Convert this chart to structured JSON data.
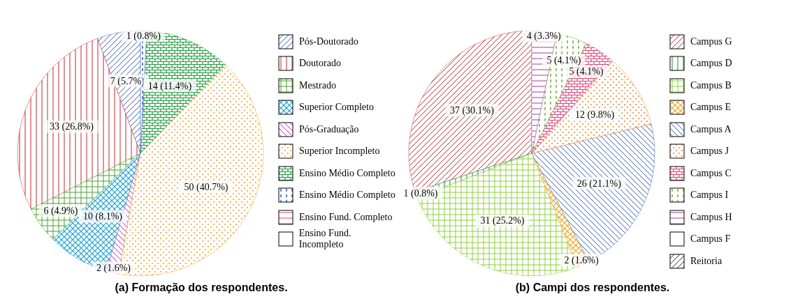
{
  "chart_data": [
    {
      "type": "pie",
      "title": "(a) Formação dos respondentes.",
      "categories": [
        "Pós-Doutorado",
        "Doutorado",
        "Mestrado",
        "Superior Completo",
        "Pós-Graduação",
        "Superior Incompleto",
        "Ensino Médio Completo",
        "Ensino Médio Completo",
        "Ensino Fund. Completo",
        "Ensino Fund. Incompleto"
      ],
      "values": [
        7,
        33,
        6,
        10,
        2,
        50,
        14,
        1,
        0,
        0
      ],
      "colors": [
        "#3c5fb0",
        "#c0282d",
        "#4aa02c",
        "#1a9fd0",
        "#b02cb0",
        "#f39c1a",
        "#1e9a3a",
        "#2a4fc0",
        "#e0457a",
        "#000000"
      ],
      "value_labels": [
        "7 (5.7%)",
        "33 (26.8%)",
        "6 (4.9%)",
        "10 (8.1%)",
        "2 (1.6%)",
        "50 (40.7%)",
        "14 (11.4%)",
        "1 (0.8%)",
        null,
        null
      ],
      "legend": "right"
    },
    {
      "type": "pie",
      "title": "(b) Campi dos respondentes.",
      "categories": [
        "Campus G",
        "Campus D",
        "Campus B",
        "Campus E",
        "Campus A",
        "Campus J",
        "Campus C",
        "Campus I",
        "Campus H",
        "Campus F",
        "Reitoria"
      ],
      "values": [
        37,
        1,
        31,
        2,
        26,
        12,
        5,
        5,
        4,
        0,
        0
      ],
      "colors": [
        "#c0282d",
        "#1a8a2a",
        "#8fcf3a",
        "#f3a31a",
        "#3c5fb0",
        "#f07f1a",
        "#e0457a",
        "#6aab2a",
        "#a03ca0",
        "#2aa0c0",
        "#333333"
      ],
      "value_labels": [
        "37 (30.1%)",
        "1 (0.8%)",
        "31 (25.2%)",
        "2 (1.6%)",
        "26 (21.1%)",
        "12 (9.8%)",
        "5 (4.1%)",
        "5 (4.1%)",
        "4 (3.3%)",
        null,
        null
      ],
      "legend": "right"
    }
  ]
}
